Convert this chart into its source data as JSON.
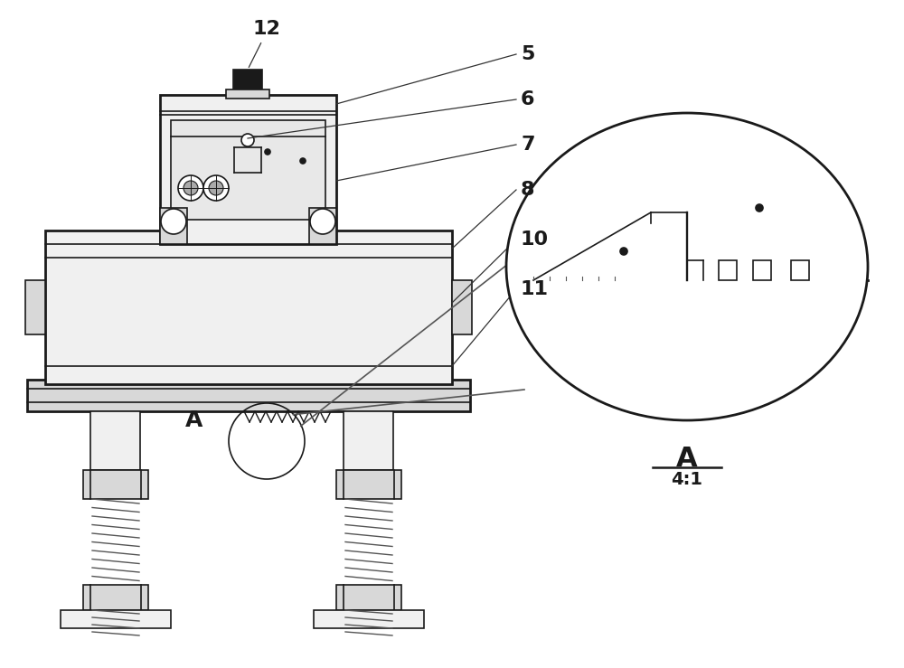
{
  "bg_color": "#ffffff",
  "lc": "#1a1a1a",
  "lw": 1.2,
  "tlw": 2.0,
  "gray_fill": "#d8d8d8",
  "light_fill": "#f0f0f0",
  "dark_fill": "#222222",
  "annotation_fs": 13,
  "label_fs": 16
}
